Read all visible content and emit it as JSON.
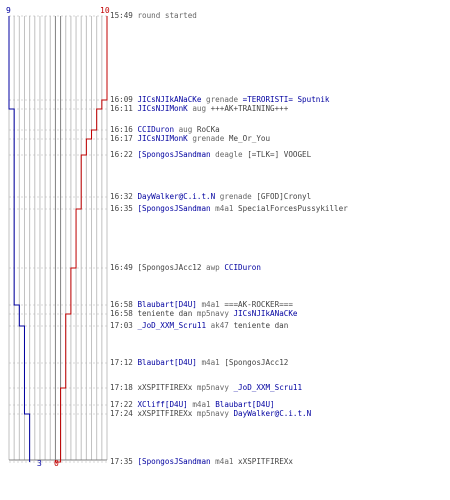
{
  "colors": {
    "ct": "#0000a0",
    "t": "#c00000",
    "grid": "#c0c0c0",
    "grid_dark": "#808080",
    "time": "#444444"
  },
  "scoreboard": {
    "ct_start": "9",
    "t_start": "10",
    "ct_end": "3",
    "t_end": "0",
    "ct_alive": [
      9,
      9,
      8,
      8,
      8,
      8,
      8,
      8,
      8,
      7,
      7,
      6,
      6,
      6,
      6,
      5,
      5,
      4,
      4,
      3
    ],
    "t_alive": [
      10,
      9,
      8,
      7,
      6,
      5,
      5,
      4,
      3,
      3,
      2,
      2,
      2,
      1,
      1,
      1,
      0,
      0,
      0,
      0
    ]
  },
  "events": [
    {
      "time": "15:49",
      "type": "system",
      "text": "round started"
    },
    {
      "time": "16:09",
      "killer": "JICsNJIkANaCKe",
      "killer_team": "ct",
      "weapon": "grenade",
      "victim": "=TERORISTI= Sputnik",
      "victim_team": "ct"
    },
    {
      "time": "16:11",
      "killer": "JICsNJIMonK",
      "killer_team": "ct",
      "weapon": "aug",
      "victim": "+++AK+TRAINING+++",
      "victim_team": "t"
    },
    {
      "time": "16:16",
      "killer": "CCIDuron",
      "killer_team": "ct",
      "weapon": "aug",
      "victim": "RoCKa",
      "victim_team": "t"
    },
    {
      "time": "16:17",
      "killer": "JICsNJIMonK",
      "killer_team": "ct",
      "weapon": "grenade",
      "victim": "Me_Or_You",
      "victim_team": "t"
    },
    {
      "time": "16:22",
      "killer": "[SpongosJSandman",
      "killer_team": "ct",
      "weapon": "deagle",
      "victim": "[=TLK=] VOOGEL",
      "victim_team": "t"
    },
    {
      "time": "16:32",
      "killer": "DayWalker@C.i.t.N",
      "killer_team": "ct",
      "weapon": "grenade",
      "victim": "[GFOD]Cronyl",
      "victim_team": "t"
    },
    {
      "time": "16:35",
      "killer": "[SpongosJSandman",
      "killer_team": "ct",
      "weapon": "m4a1",
      "victim": "SpecialForcesPussykiller",
      "victim_team": "t"
    },
    {
      "time": "16:49",
      "killer": "[SpongosJAcc12",
      "killer_team": "t",
      "weapon": "awp",
      "victim": "CCIDuron",
      "victim_team": "ct"
    },
    {
      "time": "16:58",
      "killer": "Blaubart[D4U]",
      "killer_team": "ct",
      "weapon": "m4a1",
      "victim": "===AK-ROCKER===",
      "victim_team": "t"
    },
    {
      "time": "16:58",
      "killer": "teniente dan",
      "killer_team": "t",
      "weapon": "mp5navy",
      "victim": "JICsNJIkANaCKe",
      "victim_team": "ct"
    },
    {
      "time": "17:03",
      "killer": "_JoD_XXM_Scru11",
      "killer_team": "ct",
      "weapon": "ak47",
      "victim": "teniente dan",
      "victim_team": "t"
    },
    {
      "time": "17:12",
      "killer": "Blaubart[D4U]",
      "killer_team": "ct",
      "weapon": "m4a1",
      "victim": "[SpongosJAcc12",
      "victim_team": "t"
    },
    {
      "time": "17:18",
      "killer": "xXSPITFIREXx",
      "killer_team": "t",
      "weapon": "mp5navy",
      "victim": "_JoD_XXM_Scru11",
      "victim_team": "ct"
    },
    {
      "time": "17:22",
      "killer": "XCliff[D4U]",
      "killer_team": "ct",
      "weapon": "m4a1",
      "victim": "Blaubart[D4U]",
      "victim_team": "ct"
    },
    {
      "time": "17:24",
      "killer": "xXSPITFIREXx",
      "killer_team": "t",
      "weapon": "mp5navy",
      "victim": "DayWalker@C.i.t.N",
      "victim_team": "ct"
    },
    {
      "time": "17:35",
      "killer": "[SpongosJSandman",
      "killer_team": "ct",
      "weapon": "m4a1",
      "victim": "xXSPITFIREXx",
      "victim_team": "t"
    }
  ]
}
